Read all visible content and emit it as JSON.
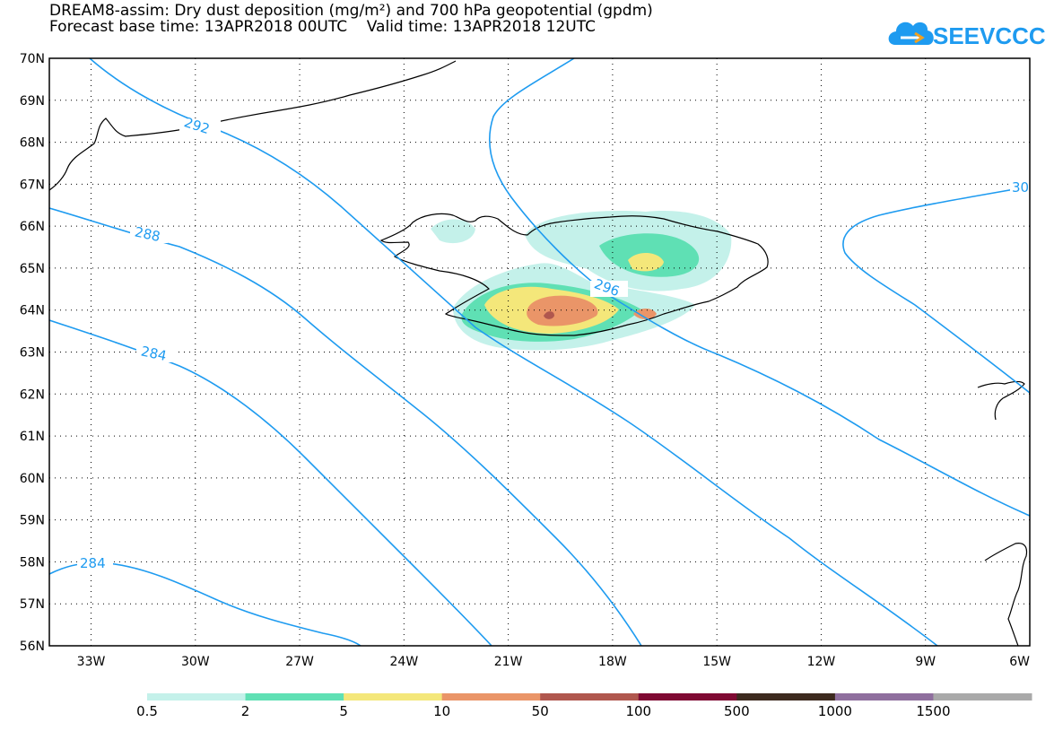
{
  "title": {
    "line1": "DREAM8-assim: Dry dust deposition (mg/m²) and 700 hPa geopotential (gpdm)",
    "line2": "Forecast base time: 13APR2018 00UTC    Valid time: 13APR2018 12UTC"
  },
  "logo": {
    "text": "SEEVCCC",
    "icon": "cloud-logo-icon",
    "color": "#1e9bf0"
  },
  "axes": {
    "latitude_labels": [
      "70N",
      "69N",
      "68N",
      "67N",
      "66N",
      "65N",
      "64N",
      "63N",
      "62N",
      "61N",
      "60N",
      "59N",
      "58N",
      "57N",
      "56N"
    ],
    "longitude_labels": [
      "33W",
      "30W",
      "27W",
      "24W",
      "21W",
      "18W",
      "15W",
      "12W",
      "9W",
      "6W"
    ],
    "lat_range": [
      56,
      70
    ],
    "lon_range": [
      -34.2,
      -6
    ]
  },
  "contours": {
    "color": "#1e9bf0",
    "labels": [
      "292",
      "288",
      "296",
      "284",
      "284",
      "30"
    ]
  },
  "legend": {
    "labels": [
      "0.5",
      "2",
      "5",
      "10",
      "50",
      "100",
      "500",
      "1000",
      "1500"
    ],
    "colors": [
      "#c4f1ea",
      "#5fe0b4",
      "#f4e77a",
      "#ea9568",
      "#b0574e",
      "#7f0a33",
      "#3d2a1f",
      "#8f6f9e",
      "#a9a9a9"
    ]
  },
  "dust_colors": {
    "c1": "#c4f1ea",
    "c2": "#5fe0b4",
    "c3": "#f4e77a",
    "c4": "#ea9568",
    "c5": "#b0574e"
  }
}
